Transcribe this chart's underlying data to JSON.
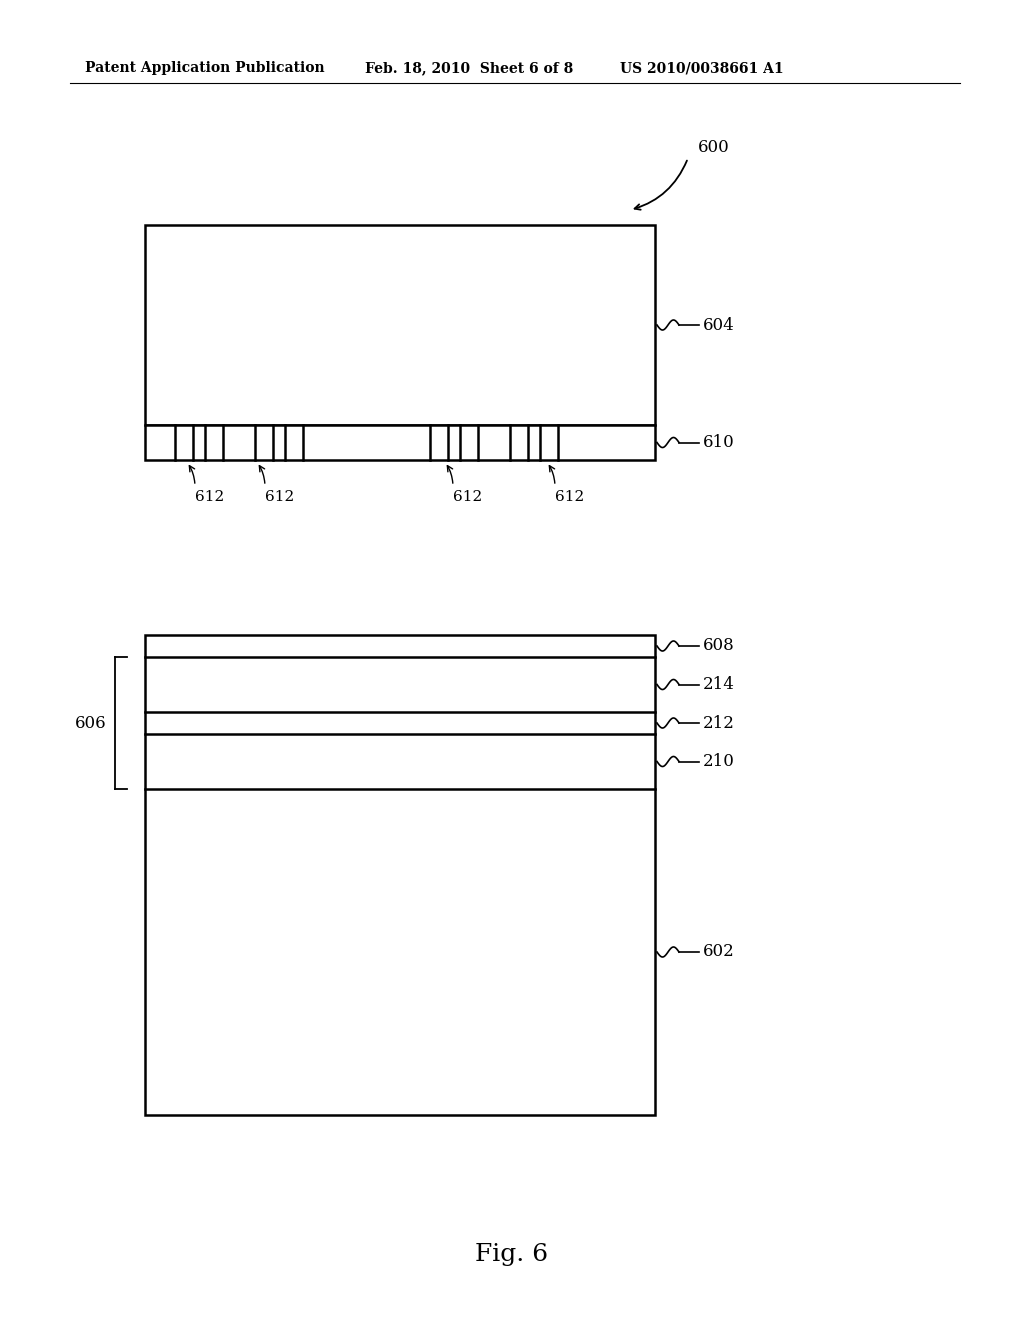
{
  "bg_color": "#ffffff",
  "line_color": "#000000",
  "header_text": "Patent Application Publication",
  "header_date": "Feb. 18, 2010  Sheet 6 of 8",
  "header_patent": "US 2010/0038661 A1",
  "fig_label": "Fig. 6"
}
